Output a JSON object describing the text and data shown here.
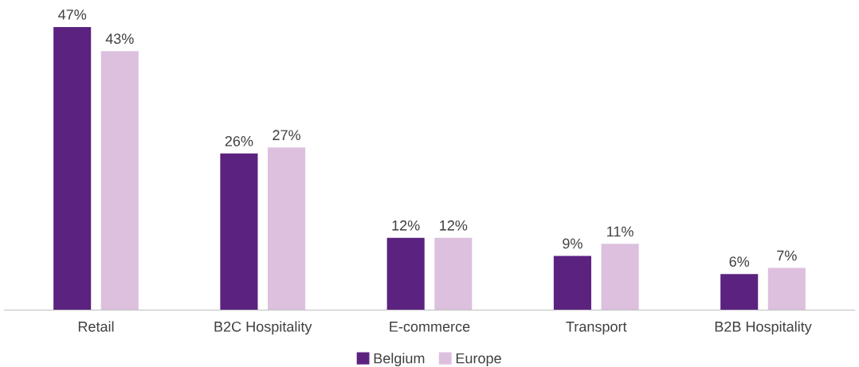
{
  "chart_data": {
    "type": "bar",
    "categories": [
      "Retail",
      "B2C Hospitality",
      "E-commerce",
      "Transport",
      "B2B Hospitality"
    ],
    "series": [
      {
        "name": "Belgium",
        "color": "#5b2280",
        "values": [
          47,
          26,
          12,
          9,
          6
        ],
        "value_labels": [
          "47%",
          "26%",
          "12%",
          "9%",
          "6%"
        ]
      },
      {
        "name": "Europe",
        "color": "#dcc0de",
        "values": [
          43,
          27,
          12,
          11,
          7
        ],
        "value_labels": [
          "43%",
          "27%",
          "12%",
          "11%",
          "7%"
        ]
      }
    ],
    "legend": "bottom",
    "grid": false
  }
}
